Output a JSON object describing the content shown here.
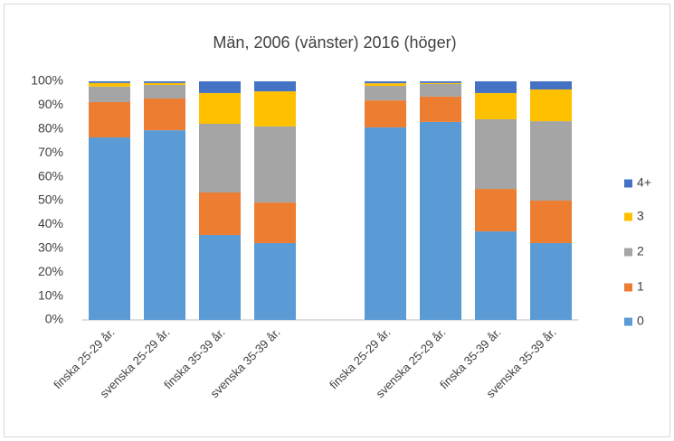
{
  "chart_data": {
    "type": "stacked_bar",
    "title": "Män, 2006 (vänster) 2016 (höger)",
    "categories": [
      "finska 25-29 år.",
      "svenska 25-29 år.",
      "finska 35-39 år.",
      "svenska 35-39 år.",
      null,
      "finska 25-29 år.",
      "svenska 25-29 år.",
      "finska 35-39 år.",
      "svenska 35-39 år."
    ],
    "series": [
      {
        "name": "0",
        "color": "#5b9bd5",
        "values": [
          76.5,
          79.5,
          35.6,
          32.2,
          null,
          80.7,
          83.0,
          37.1,
          32.2
        ]
      },
      {
        "name": "1",
        "color": "#ed7d31",
        "values": [
          14.8,
          13.3,
          17.8,
          17.0,
          null,
          11.3,
          10.6,
          17.8,
          17.8
        ]
      },
      {
        "name": "2",
        "color": "#a5a5a5",
        "values": [
          6.5,
          5.7,
          28.8,
          31.9,
          null,
          6.1,
          5.3,
          29.2,
          33.3
        ]
      },
      {
        "name": "3",
        "color": "#ffc000",
        "values": [
          1.5,
          0.8,
          12.9,
          14.7,
          null,
          1.1,
          0.4,
          11.0,
          13.3
        ]
      },
      {
        "name": "4+",
        "color": "#4472c4",
        "values": [
          0.7,
          0.7,
          4.9,
          4.2,
          null,
          0.8,
          0.7,
          4.9,
          3.4
        ]
      }
    ],
    "ylim": [
      0,
      100
    ],
    "yticks": [
      {
        "value": 0,
        "label": "0%"
      },
      {
        "value": 10,
        "label": "10%"
      },
      {
        "value": 20,
        "label": "20%"
      },
      {
        "value": 30,
        "label": "30%"
      },
      {
        "value": 40,
        "label": "40%"
      },
      {
        "value": 50,
        "label": "50%"
      },
      {
        "value": 60,
        "label": "60%"
      },
      {
        "value": 70,
        "label": "70%"
      },
      {
        "value": 80,
        "label": "80%"
      },
      {
        "value": 90,
        "label": "90%"
      },
      {
        "value": 100,
        "label": "100%"
      }
    ],
    "legend": "right"
  }
}
